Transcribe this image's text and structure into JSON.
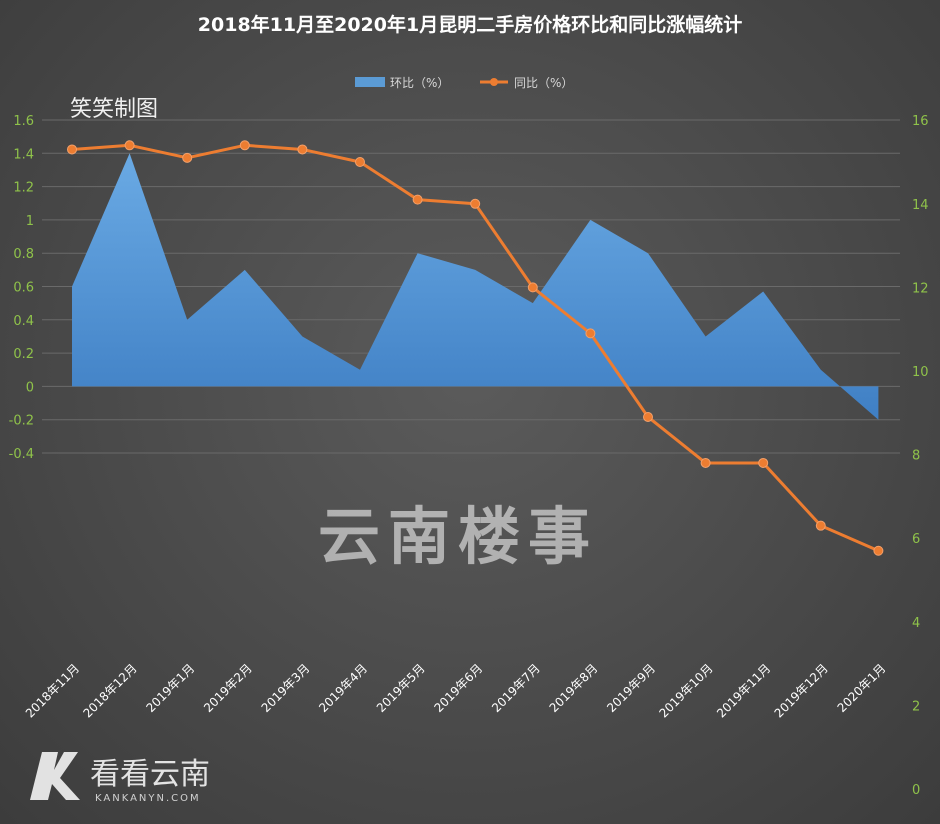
{
  "chart_data": {
    "type": "area+line",
    "title": "2018年11月至2020年1月昆明二手房价格环比和同比涨幅统计",
    "credit": "笑笑制图",
    "watermark": "云南楼事",
    "logo": {
      "name": "看看云南",
      "url_text": "KANKANYN.COM"
    },
    "categories": [
      "2018年11月",
      "2018年12月",
      "2019年1月",
      "2019年2月",
      "2019年3月",
      "2019年4月",
      "2019年5月",
      "2019年6月",
      "2019年7月",
      "2019年8月",
      "2019年9月",
      "2019年10月",
      "2019年11月",
      "2019年12月",
      "2020年1月"
    ],
    "series": [
      {
        "name": "环比（%）",
        "type": "area",
        "axis": "left",
        "color": "#5b9bd5",
        "values": [
          0.6,
          1.4,
          0.4,
          0.7,
          0.3,
          0.1,
          0.8,
          0.7,
          0.5,
          1.0,
          0.8,
          0.3,
          0.57,
          0.1,
          -0.2
        ]
      },
      {
        "name": "同比（%）",
        "type": "line",
        "axis": "right",
        "color": "#ed7d31",
        "values": [
          15.3,
          15.4,
          15.1,
          15.4,
          15.3,
          15.0,
          14.1,
          14.0,
          12.0,
          10.9,
          8.9,
          7.8,
          7.8,
          6.3,
          5.7
        ]
      }
    ],
    "left_axis": {
      "min": -0.4,
      "max": 1.6,
      "step": 0.2,
      "ticks": [
        "-0.4",
        "-0.2",
        "0",
        "0.2",
        "0.4",
        "0.6",
        "0.8",
        "1",
        "1.2",
        "1.4",
        "1.6"
      ]
    },
    "right_axis": {
      "min": 0,
      "max": 16,
      "step": 2,
      "ticks": [
        "0",
        "2",
        "4",
        "6",
        "8",
        "10",
        "12",
        "14",
        "16"
      ]
    },
    "grid": true,
    "legend_position": "top"
  }
}
